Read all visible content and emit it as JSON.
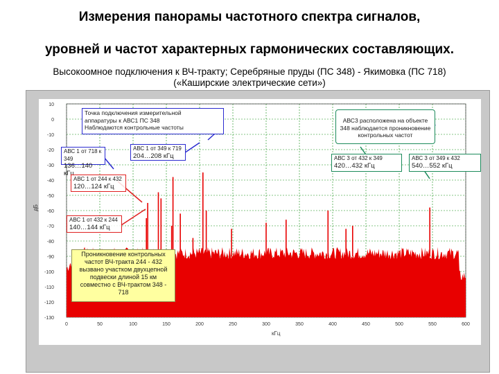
{
  "title_line1": "Измерения панорамы частотного спектра сигналов,",
  "title_line2": "уровней и частот характерных гармонических составляющих.",
  "subtitle_line1": "Высокоомное подключения к ВЧ-тракту; Серебряные пруды (ПС 348) - Якимовка (ПС 718)",
  "subtitle_line2": "(«Каширские электрические сети»)",
  "annotations": {
    "connection_point": [
      "Точка подключения измерительной",
      "аппаратуры к АВС1 ПС 348",
      "Наблюдаются контрольные частоты"
    ],
    "abc1_718_349": [
      "АВС 1 от 718 к 349",
      "136…140 кГц"
    ],
    "abc1_349_719": [
      "АВС 1 от 349 к 719",
      "204…208 кГц"
    ],
    "abc1_244_432": [
      "АВС 1 от 244 к 432",
      "120…124 кГц"
    ],
    "abc1_432_244": [
      "АВС 1 от 432 к 244",
      "140…144 кГц"
    ],
    "penetration": [
      "Проникновение контрольных",
      "частот ВЧ-тракта 244 - 432",
      "вызвано участком двухцепной",
      "подвески длиной 15 км",
      "совместно с ВЧ-трактом 348 -",
      "718"
    ],
    "abc3": [
      "АВС3 расположена на объекте",
      "348 наблюдается проникновение",
      "контрольных частот"
    ],
    "abc3_432_349": [
      "АВС 3 от 432 к 349",
      "420…432 кГц"
    ],
    "abc3_349_432": [
      "АВС 3 от 349 к 432",
      "540…552 кГц"
    ]
  },
  "chart_data": {
    "type": "area",
    "xlabel": "кГц",
    "ylabel": "дБ",
    "xlim": [
      0,
      600
    ],
    "ylim": [
      -130,
      10
    ],
    "xticks": [
      "0",
      "50",
      "100",
      "150",
      "200",
      "250",
      "300",
      "350",
      "400",
      "450",
      "500",
      "550",
      "600"
    ],
    "yticks": [
      "10",
      "0",
      "-10",
      "-20",
      "-30",
      "-40",
      "-50",
      "-60",
      "-70",
      "-80",
      "-90",
      "-100",
      "-110",
      "-120",
      "-130"
    ],
    "noise_floor_db": -90,
    "peaks": [
      {
        "x": 120,
        "y": -65
      },
      {
        "x": 122,
        "y": -55
      },
      {
        "x": 138,
        "y": -48
      },
      {
        "x": 142,
        "y": -52
      },
      {
        "x": 158,
        "y": -70
      },
      {
        "x": 160,
        "y": -38
      },
      {
        "x": 171,
        "y": -62
      },
      {
        "x": 190,
        "y": -78
      },
      {
        "x": 205,
        "y": -35
      },
      {
        "x": 210,
        "y": -60
      },
      {
        "x": 248,
        "y": -72
      },
      {
        "x": 300,
        "y": -68
      },
      {
        "x": 330,
        "y": -66
      },
      {
        "x": 393,
        "y": -60
      },
      {
        "x": 420,
        "y": -72
      },
      {
        "x": 430,
        "y": -70
      },
      {
        "x": 546,
        "y": -58
      }
    ],
    "colors": {
      "fill": "#e80000",
      "grid": "#0a8a0a"
    }
  }
}
